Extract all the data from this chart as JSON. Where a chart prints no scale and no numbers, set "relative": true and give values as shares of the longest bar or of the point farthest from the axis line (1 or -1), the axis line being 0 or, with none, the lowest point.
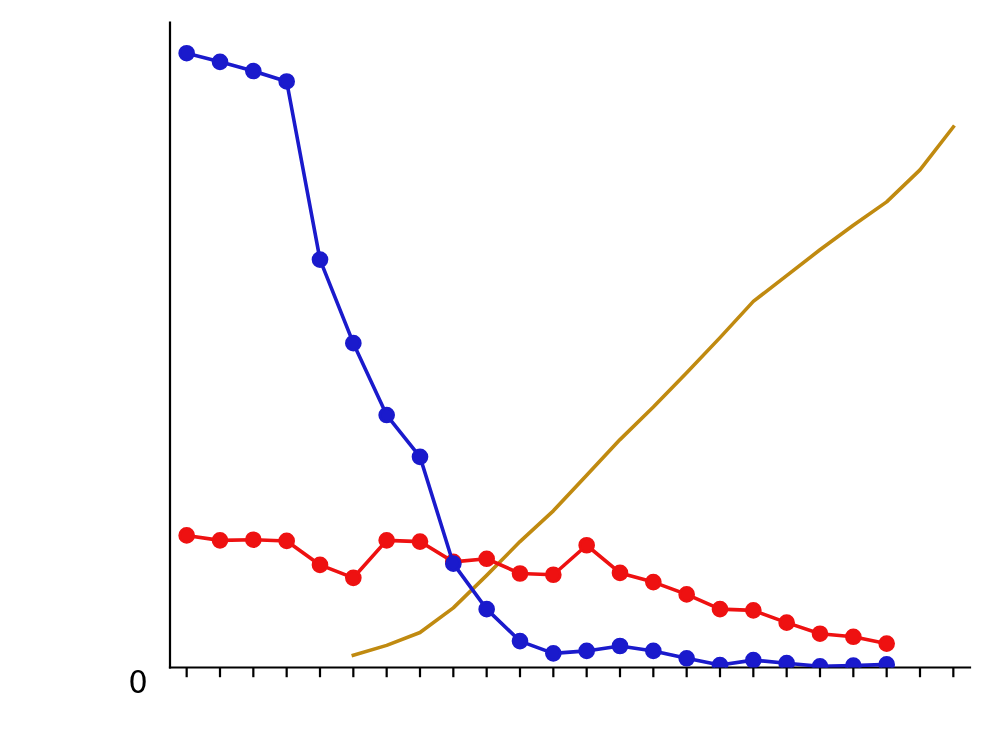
{
  "chart_data": {
    "type": "line",
    "relative": true,
    "grid": false,
    "annotations": [
      "0"
    ],
    "categories": [
      null,
      null,
      null,
      null,
      null,
      null,
      null,
      null,
      null,
      null,
      null,
      null,
      null,
      null,
      null,
      null,
      null,
      null,
      null,
      null,
      null,
      null,
      null,
      null
    ],
    "series": [
      {
        "color": "#1a1acc",
        "marker": "circle",
        "values": [
          1.0,
          0.986,
          0.971,
          0.954,
          0.664,
          0.528,
          0.411,
          0.343,
          0.169,
          0.095,
          0.043,
          0.023,
          0.027,
          0.035,
          0.027,
          0.015,
          0.004,
          0.012,
          0.007,
          0.002,
          0.003,
          0.005,
          null,
          null
        ]
      },
      {
        "color": "#ee1111",
        "marker": "circle",
        "values": [
          0.215,
          0.207,
          0.208,
          0.206,
          0.167,
          0.146,
          0.207,
          0.205,
          0.172,
          0.177,
          0.153,
          0.151,
          0.199,
          0.154,
          0.139,
          0.119,
          0.095,
          0.093,
          0.073,
          0.055,
          0.05,
          0.039,
          null,
          null
        ]
      },
      {
        "color": "#c08a10",
        "marker": "none",
        "values": [
          null,
          null,
          null,
          null,
          null,
          0.02,
          0.036,
          0.057,
          0.097,
          0.15,
          0.205,
          0.255,
          0.313,
          0.371,
          0.424,
          0.48,
          0.537,
          0.596,
          0.638,
          0.68,
          0.72,
          0.758,
          0.81,
          0.88
        ]
      }
    ]
  }
}
